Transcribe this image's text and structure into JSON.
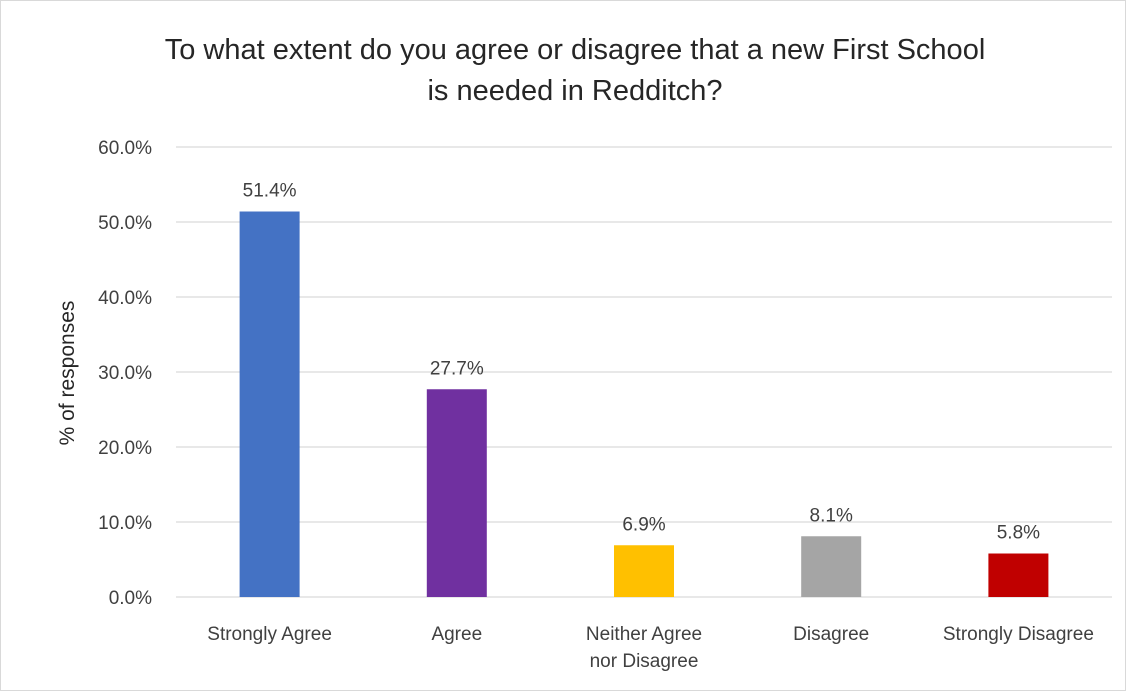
{
  "chart_data": {
    "type": "bar",
    "title_lines": [
      "To what extent do you agree or disagree that a new First School",
      "is needed in Redditch?"
    ],
    "xlabel": "",
    "ylabel": "% of responses",
    "ylim": [
      0,
      60
    ],
    "y_ticks": [
      0,
      10,
      20,
      30,
      40,
      50,
      60
    ],
    "y_tick_labels": [
      "0.0%",
      "10.0%",
      "20.0%",
      "30.0%",
      "40.0%",
      "50.0%",
      "60.0%"
    ],
    "grid": true,
    "categories": [
      [
        "Strongly Agree"
      ],
      [
        "Agree"
      ],
      [
        "Neither Agree",
        "nor Disagree"
      ],
      [
        "Disagree"
      ],
      [
        "Strongly Disagree"
      ]
    ],
    "values": [
      51.4,
      27.7,
      6.9,
      8.1,
      5.8
    ],
    "data_labels": [
      "51.4%",
      "27.7%",
      "6.9%",
      "8.1%",
      "5.8%"
    ],
    "colors": [
      "#4472C4",
      "#7030A0",
      "#FFC000",
      "#A5A5A5",
      "#C00000"
    ]
  }
}
